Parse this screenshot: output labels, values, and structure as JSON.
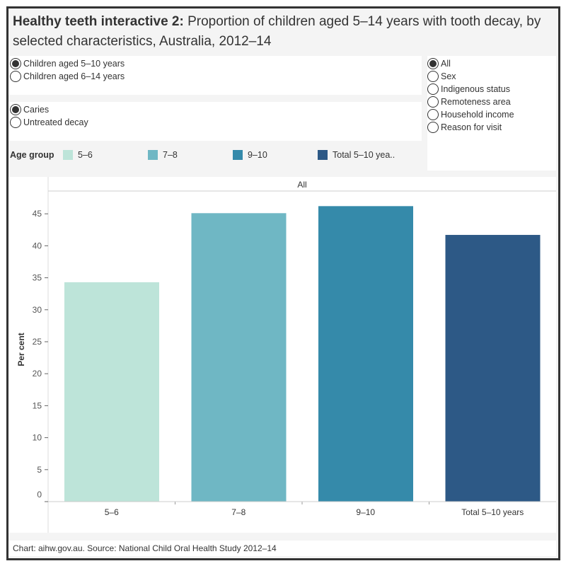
{
  "title": {
    "bold": "Healthy teeth interactive 2:",
    "rest": " Proportion of children aged 5–14 years with tooth decay, by selected characteristics, Australia, 2012–14"
  },
  "age_filter": {
    "options": [
      {
        "label": "Children aged 5–10 years",
        "selected": true
      },
      {
        "label": "Children aged 6–14 years",
        "selected": false
      }
    ]
  },
  "measure_filter": {
    "options": [
      {
        "label": "Caries",
        "selected": true
      },
      {
        "label": "Untreated decay",
        "selected": false
      }
    ]
  },
  "characteristic_filter": {
    "options": [
      {
        "label": "All",
        "selected": true
      },
      {
        "label": "Sex",
        "selected": false
      },
      {
        "label": "Indigenous status",
        "selected": false
      },
      {
        "label": "Remoteness area",
        "selected": false
      },
      {
        "label": "Household income",
        "selected": false
      },
      {
        "label": "Reason for visit",
        "selected": false
      }
    ]
  },
  "legend": {
    "title": "Age group",
    "items": [
      {
        "label": "5–6",
        "color": "#bde4d9"
      },
      {
        "label": "7–8",
        "color": "#6fb7c4"
      },
      {
        "label": "9–10",
        "color": "#358aaa"
      },
      {
        "label": "Total 5–10 yea..",
        "color": "#2d5986"
      }
    ]
  },
  "chart_data": {
    "type": "bar",
    "panel_header": "All",
    "categories": [
      "5–6",
      "7–8",
      "9–10",
      "Total 5–10 years"
    ],
    "values": [
      34.3,
      45.1,
      46.2,
      41.7
    ],
    "colors": [
      "#bde4d9",
      "#6fb7c4",
      "#358aaa",
      "#2d5986"
    ],
    "ylabel": "Per cent",
    "xlabel": "",
    "ylim": [
      0,
      48.6
    ],
    "yticks": [
      0,
      5,
      10,
      15,
      20,
      25,
      30,
      35,
      40,
      45
    ],
    "grid": false
  },
  "footer": "Chart: aihw.gov.au. Source: National Child Oral Health Study 2012–14"
}
